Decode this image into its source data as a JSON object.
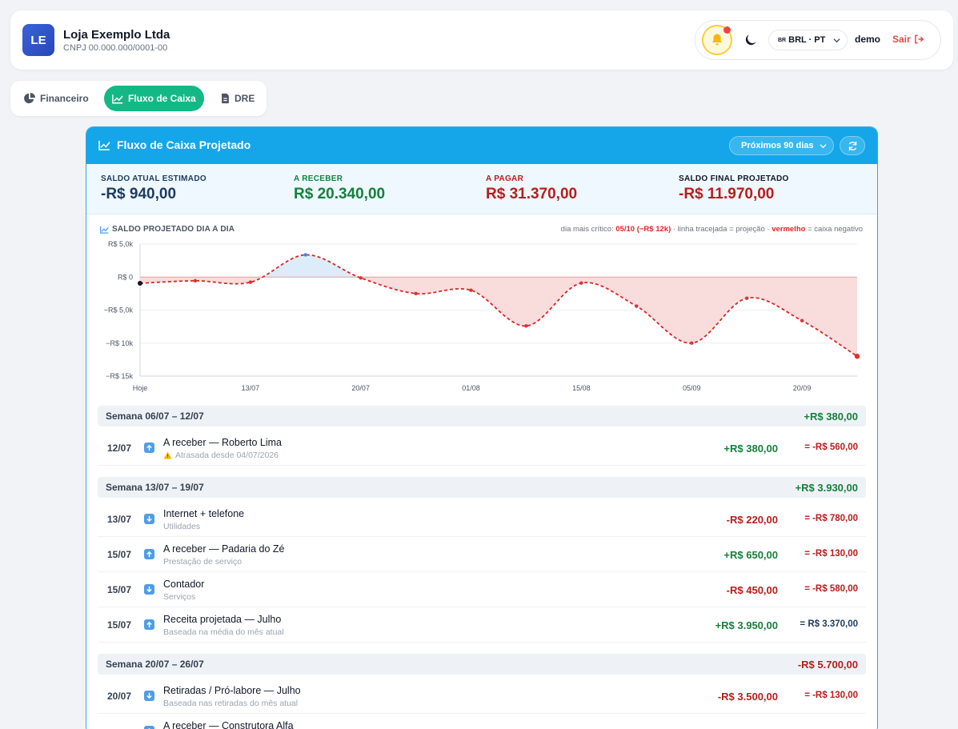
{
  "header": {
    "logo_initials": "LE",
    "company_name": "Loja Exemplo Ltda",
    "cnpj": "CNPJ 00.000.000/0001-00",
    "locale_flag": "BR",
    "locale_label": "BRL · PT",
    "username": "demo",
    "logout_label": "Sair"
  },
  "tabs": [
    {
      "label": "Financeiro",
      "icon": "pie-chart-icon"
    },
    {
      "label": "Fluxo de Caixa",
      "icon": "line-chart-icon",
      "active": true
    },
    {
      "label": "DRE",
      "icon": "document-icon"
    }
  ],
  "card": {
    "title": "Fluxo de Caixa Projetado",
    "period_selected": "Próximos 90 dias"
  },
  "summary": [
    {
      "label": "SALDO ATUAL ESTIMADO",
      "value": "-R$ 940,00",
      "color": "#1e3a5f"
    },
    {
      "label": "A RECEBER",
      "value": "R$ 20.340,00",
      "color": "#15803d"
    },
    {
      "label": "A PAGAR",
      "value": "R$ 31.370,00",
      "color": "#b91c1c"
    },
    {
      "label": "SALDO FINAL PROJETADO",
      "value": "-R$ 11.970,00",
      "color": "#b91c1c"
    }
  ],
  "chart_section": {
    "title": "SALDO PROJETADO DIA A DIA",
    "note_prefix": "dia mais crítico: ",
    "note_critical": "05/10 (−R$ 12k)",
    "note_middle": " · linha tracejada = projeção · ",
    "note_red_word": "vermelho",
    "note_suffix": " = caixa negativo"
  },
  "chart_data": {
    "type": "area",
    "y_ticks": [
      {
        "value": 5000,
        "label": "R$ 5,0k"
      },
      {
        "value": 0,
        "label": "R$ 0"
      },
      {
        "value": -5000,
        "label": "−R$ 5,0k"
      },
      {
        "value": -10000,
        "label": "−R$ 10k"
      },
      {
        "value": -15000,
        "label": "−R$ 15k"
      }
    ],
    "ylim": [
      -15000,
      5000
    ],
    "x_ticks": [
      {
        "day": 0,
        "label": "Hoje"
      },
      {
        "day": 7,
        "label": "13/07"
      },
      {
        "day": 14,
        "label": "20/07"
      },
      {
        "day": 21,
        "label": "01/08"
      },
      {
        "day": 28,
        "label": "15/08"
      },
      {
        "day": 35,
        "label": "05/09"
      },
      {
        "day": 42,
        "label": "20/09"
      }
    ],
    "xlim": [
      0,
      45.5
    ],
    "grid": true,
    "series": [
      {
        "points": [
          {
            "day": 0,
            "value": -940
          },
          {
            "day": 3.5,
            "value": -560
          },
          {
            "day": 7,
            "value": -780
          },
          {
            "day": 10.5,
            "value": 3370
          },
          {
            "day": 14,
            "value": -130
          },
          {
            "day": 17.5,
            "value": -2500
          },
          {
            "day": 21,
            "value": -2000
          },
          {
            "day": 24.5,
            "value": -7400
          },
          {
            "day": 28,
            "value": -900
          },
          {
            "day": 31.5,
            "value": -4400
          },
          {
            "day": 35,
            "value": -10000
          },
          {
            "day": 38.5,
            "value": -3200
          },
          {
            "day": 42,
            "value": -6600
          },
          {
            "day": 45.5,
            "value": -12000
          }
        ]
      }
    ]
  },
  "weeks": [
    {
      "label": "Semana 06/07 – 12/07",
      "total": "+R$ 380,00",
      "total_color": "#15803d",
      "rows": [
        {
          "date": "12/07",
          "direction": "in",
          "title": "A receber — Roberto Lima",
          "subtitle": "Atrasada desde 04/07/2026",
          "warning": true,
          "amount": "+R$ 380,00",
          "amount_color": "#15803d",
          "balance": "= -R$ 560,00",
          "balance_color": "#b91c1c"
        }
      ]
    },
    {
      "label": "Semana 13/07 – 19/07",
      "total": "+R$ 3.930,00",
      "total_color": "#15803d",
      "rows": [
        {
          "date": "13/07",
          "direction": "out",
          "title": "Internet + telefone",
          "subtitle": "Utilidades",
          "amount": "-R$ 220,00",
          "amount_color": "#b91c1c",
          "balance": "= -R$ 780,00",
          "balance_color": "#b91c1c"
        },
        {
          "date": "15/07",
          "direction": "in",
          "title": "A receber — Padaria do Zé",
          "subtitle": "Prestação de serviço",
          "amount": "+R$ 650,00",
          "amount_color": "#15803d",
          "balance": "= -R$ 130,00",
          "balance_color": "#b91c1c"
        },
        {
          "date": "15/07",
          "direction": "out",
          "title": "Contador",
          "subtitle": "Serviços",
          "amount": "-R$ 450,00",
          "amount_color": "#b91c1c",
          "balance": "= -R$ 580,00",
          "balance_color": "#b91c1c"
        },
        {
          "date": "15/07",
          "direction": "in",
          "title": "Receita projetada — Julho",
          "subtitle": "Baseada na média do mês atual",
          "amount": "+R$ 3.950,00",
          "amount_color": "#15803d",
          "balance": "= R$ 3.370,00",
          "balance_color": "#1e3a5f"
        }
      ]
    },
    {
      "label": "Semana 20/07 – 26/07",
      "total": "-R$ 5.700,00",
      "total_color": "#b91c1c",
      "rows": [
        {
          "date": "20/07",
          "direction": "out",
          "title": "Retiradas / Pró-labore — Julho",
          "subtitle": "Baseada nas retiradas do mês atual",
          "amount": "-R$ 3.500,00",
          "amount_color": "#b91c1c",
          "balance": "= -R$ 130,00",
          "balance_color": "#b91c1c"
        },
        {
          "date": "",
          "direction": "in",
          "title": "A receber — Construtora Alfa",
          "subtitle": "",
          "amount": "",
          "amount_color": "#15803d",
          "balance": "",
          "balance_color": "#1e3a5f"
        }
      ]
    }
  ]
}
